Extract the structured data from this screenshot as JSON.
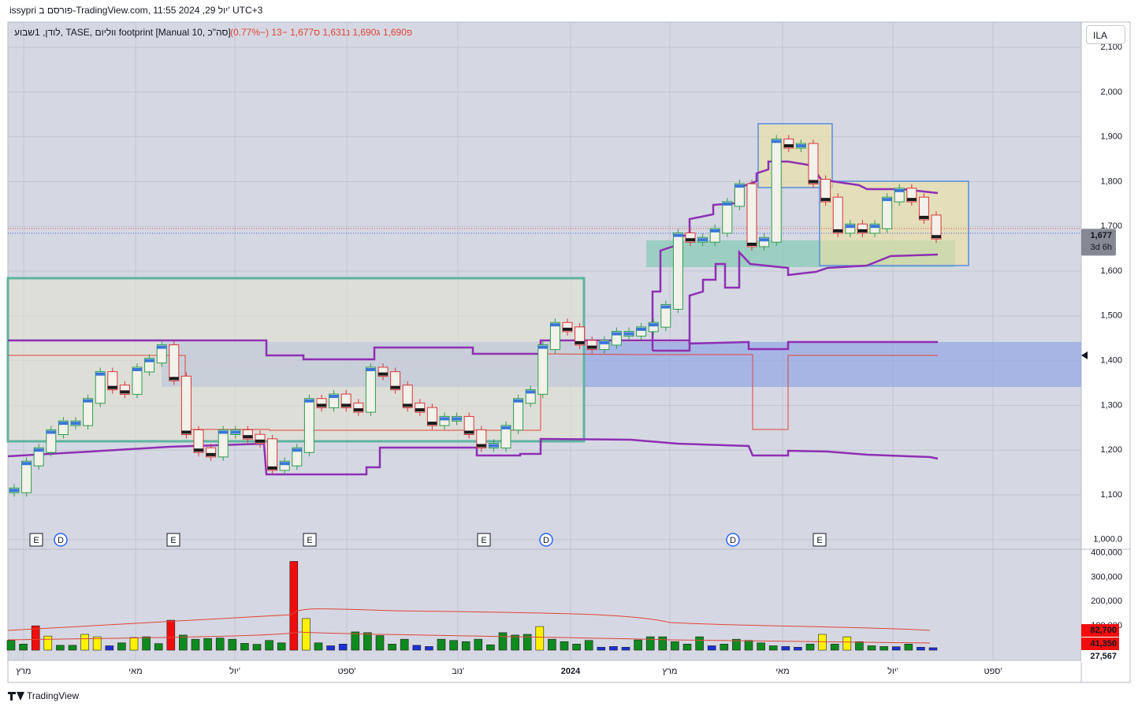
{
  "header": {
    "text": "issypri פורסם ב-TradingView.com, 11:55 2024 ,29 יול' UTC+3"
  },
  "legend": {
    "title": "לודן, 1שבוע, TASE, ווליום footprint [Manual 10, סה\"כ]",
    "ohlc": "פ1,690 ג1,690 נ1,631 ס1,677 −13 (−0.77%)"
  },
  "symbol_button": "ILA",
  "price_axis": {
    "ylim": [
      982,
      2153
    ],
    "yticks": [
      {
        "value": 2100,
        "label": "2,100"
      },
      {
        "value": 2000,
        "label": "2,000"
      },
      {
        "value": 1900,
        "label": "1,900"
      },
      {
        "value": 1800,
        "label": "1,800"
      },
      {
        "value": 1700,
        "label": "1,700"
      },
      {
        "value": 1600,
        "label": "1,600"
      },
      {
        "value": 1500,
        "label": "1,500"
      },
      {
        "value": 1400,
        "label": "1,400"
      },
      {
        "value": 1300,
        "label": "1,300"
      },
      {
        "value": 1200,
        "label": "1,200"
      },
      {
        "value": 1100,
        "label": "1,100"
      },
      {
        "value": 1000,
        "label": "1,000.0"
      }
    ]
  },
  "last_price": {
    "value": 1677,
    "label": "1,677",
    "countdown": "3d 6h"
  },
  "candles": {
    "closes": [
      1110,
      1170,
      1200,
      1240,
      1260,
      1260,
      1310,
      1370,
      1340,
      1330,
      1380,
      1400,
      1430,
      1360,
      1240,
      1200,
      1190,
      1240,
      1240,
      1230,
      1220,
      1160,
      1170,
      1200,
      1310,
      1300,
      1320,
      1300,
      1290,
      1380,
      1370,
      1340,
      1300,
      1290,
      1260,
      1270,
      1270,
      1240,
      1210,
      1210,
      1250,
      1310,
      1330,
      1430,
      1480,
      1470,
      1440,
      1430,
      1440,
      1460,
      1460,
      1470,
      1480,
      1520,
      1680,
      1670,
      1670,
      1690,
      1750,
      1790,
      1660,
      1670,
      1890,
      1880,
      1880,
      1800,
      1760,
      1690,
      1700,
      1690,
      1700,
      1760,
      1780,
      1760,
      1720,
      1677
    ]
  },
  "volume": {
    "ylim": [
      -42000,
      415000
    ],
    "yticks": [
      {
        "value": 400000,
        "label": "400,000"
      },
      {
        "value": 300000,
        "label": "300,000"
      },
      {
        "value": 200000,
        "label": "200,000"
      },
      {
        "value": 100000,
        "label": "100,000"
      }
    ],
    "values": [
      40000,
      25000,
      100000,
      58000,
      20000,
      20000,
      65000,
      55000,
      18000,
      30000,
      52000,
      55000,
      27000,
      123000,
      62000,
      45000,
      48000,
      50000,
      45000,
      28000,
      24000,
      40000,
      30000,
      365000,
      130000,
      30000,
      18000,
      25000,
      75000,
      72000,
      60000,
      25000,
      45000,
      20000,
      15000,
      45000,
      40000,
      35000,
      45000,
      22000,
      72000,
      62000,
      65000,
      97000,
      45000,
      35000,
      25000,
      40000,
      12000,
      15000,
      12000,
      42000,
      55000,
      55000,
      35000,
      25000,
      55000,
      18000,
      25000,
      45000,
      40000,
      30000,
      18000,
      15000,
      12000,
      25000,
      65000,
      25000,
      55000,
      35000,
      18000,
      15000,
      14000,
      25000,
      12000,
      10000
    ],
    "colors": [
      "g",
      "g",
      "r",
      "y",
      "g",
      "g",
      "y",
      "y",
      "b",
      "g",
      "y",
      "g",
      "g",
      "r",
      "g",
      "g",
      "g",
      "g",
      "g",
      "g",
      "g",
      "g",
      "g",
      "r",
      "y",
      "g",
      "b",
      "b",
      "g",
      "g",
      "g",
      "g",
      "g",
      "b",
      "b",
      "g",
      "g",
      "g",
      "g",
      "g",
      "g",
      "g",
      "g",
      "y",
      "g",
      "g",
      "g",
      "g",
      "b",
      "b",
      "b",
      "g",
      "g",
      "g",
      "g",
      "g",
      "g",
      "b",
      "g",
      "g",
      "g",
      "g",
      "g",
      "b",
      "b",
      "g",
      "y",
      "g",
      "y",
      "g",
      "g",
      "g",
      "b",
      "g",
      "b",
      "b"
    ],
    "markers": [
      {
        "value": 82700,
        "label": "82,700"
      },
      {
        "value": 41350,
        "label": "41,350"
      },
      {
        "value": 27567,
        "label": "27,567"
      }
    ]
  },
  "time_axis": {
    "labels": [
      "מרץ",
      "מאי",
      "יול'",
      "ספט'",
      "נוב'",
      "2024",
      "מרץ",
      "מאי",
      "יול'",
      "ספט'"
    ]
  },
  "events": [
    "E",
    "D",
    "E",
    "E",
    "E",
    "D",
    "D",
    "E"
  ],
  "branding": "TradingView"
}
